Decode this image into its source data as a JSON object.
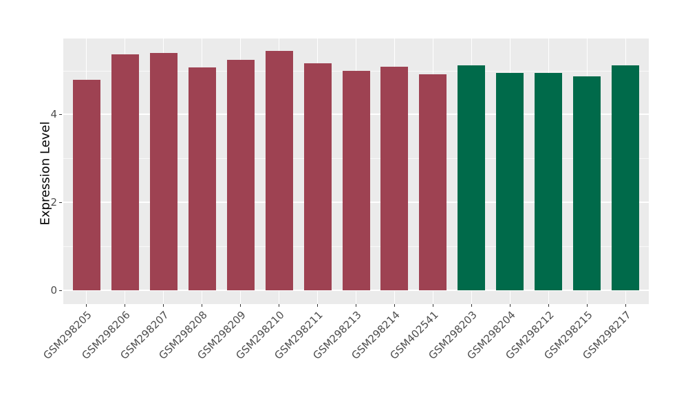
{
  "chart_data": {
    "type": "bar",
    "title": "",
    "ylabel": "Expression Level",
    "ylim": [
      0,
      5.73
    ],
    "yticks": [
      0,
      2,
      4
    ],
    "ytick_labels": [
      "0",
      "2",
      "4"
    ],
    "y_minor_ticks": [
      1,
      3,
      5
    ],
    "grid": "on",
    "legend": "none",
    "categories": [
      "GSM298205",
      "GSM298206",
      "GSM298207",
      "GSM298208",
      "GSM298209",
      "GSM298210",
      "GSM298211",
      "GSM298213",
      "GSM298214",
      "GSM402541",
      "GSM298203",
      "GSM298204",
      "GSM298212",
      "GSM298215",
      "GSM298217"
    ],
    "values": [
      4.79,
      5.37,
      5.4,
      5.07,
      5.24,
      5.45,
      5.17,
      5.0,
      5.08,
      4.92,
      5.12,
      4.95,
      4.95,
      4.86,
      5.11
    ],
    "groups": [
      "A",
      "A",
      "A",
      "A",
      "A",
      "A",
      "A",
      "A",
      "A",
      "A",
      "B",
      "B",
      "B",
      "B",
      "B"
    ],
    "group_colors": {
      "A": "#9e4252",
      "B": "#006a4a"
    },
    "panel_background": "#ebebeb",
    "gridline_color": "#ffffff",
    "tick_text_color": "#4d4d4d",
    "tick_mark_color": "#333333",
    "axis_title_color": "#000000",
    "figure_background": "#ffffff"
  }
}
